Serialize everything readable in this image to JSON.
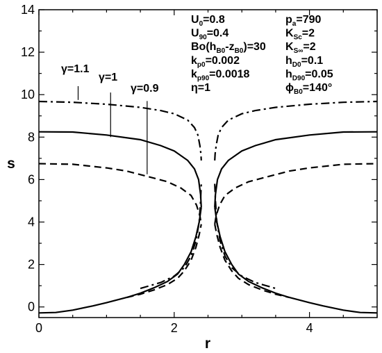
{
  "chart_data": {
    "type": "line",
    "xlabel": "r",
    "ylabel": "s",
    "xlim": [
      0,
      5
    ],
    "ylim": [
      -0.5,
      14
    ],
    "x_ticks": [
      0,
      2,
      4
    ],
    "y_ticks": [
      0,
      2,
      4,
      6,
      8,
      10,
      12,
      14
    ],
    "grid": false,
    "legend": "none",
    "series": [
      {
        "name": "γ=1.1",
        "style": "dashdot",
        "top_left": [
          [
            0,
            9.68
          ],
          [
            0.5,
            9.64
          ],
          [
            1.0,
            9.55
          ],
          [
            1.5,
            9.4
          ],
          [
            1.8,
            9.25
          ],
          [
            2.0,
            9.1
          ],
          [
            2.2,
            8.8
          ],
          [
            2.3,
            8.45
          ],
          [
            2.35,
            8.1
          ],
          [
            2.38,
            7.6
          ],
          [
            2.395,
            7.2
          ],
          [
            2.4,
            6.9
          ]
        ],
        "top_right": [
          [
            2.6,
            6.9
          ],
          [
            2.605,
            7.2
          ],
          [
            2.62,
            7.6
          ],
          [
            2.65,
            8.1
          ],
          [
            2.7,
            8.45
          ],
          [
            2.8,
            8.8
          ],
          [
            3.0,
            9.1
          ],
          [
            3.2,
            9.25
          ],
          [
            3.5,
            9.4
          ],
          [
            4.0,
            9.55
          ],
          [
            4.5,
            9.64
          ],
          [
            5.0,
            9.68
          ]
        ],
        "bottom_left": [
          [
            1.5,
            0.87
          ],
          [
            1.8,
            1.15
          ],
          [
            2.0,
            1.45
          ],
          [
            2.15,
            1.85
          ],
          [
            2.25,
            2.4
          ],
          [
            2.32,
            3.1
          ],
          [
            2.37,
            4.0
          ],
          [
            2.39,
            5.0
          ],
          [
            2.4,
            5.8
          ]
        ],
        "bottom_right": [
          [
            2.6,
            5.8
          ],
          [
            2.61,
            5.0
          ],
          [
            2.63,
            4.0
          ],
          [
            2.68,
            3.1
          ],
          [
            2.75,
            2.4
          ],
          [
            2.85,
            1.85
          ],
          [
            3.0,
            1.45
          ],
          [
            3.2,
            1.15
          ],
          [
            3.5,
            0.87
          ]
        ]
      },
      {
        "name": "γ=1",
        "style": "solid",
        "top_left": [
          [
            0,
            8.25
          ],
          [
            0.5,
            8.24
          ],
          [
            1.0,
            8.1
          ],
          [
            1.5,
            7.88
          ],
          [
            1.8,
            7.6
          ],
          [
            2.0,
            7.35
          ],
          [
            2.2,
            6.9
          ],
          [
            2.3,
            6.5
          ],
          [
            2.36,
            6.0
          ],
          [
            2.39,
            5.3
          ],
          [
            2.4,
            4.7
          ]
        ],
        "top_right": [
          [
            2.6,
            4.7
          ],
          [
            2.61,
            5.3
          ],
          [
            2.64,
            6.0
          ],
          [
            2.7,
            6.5
          ],
          [
            2.8,
            6.9
          ],
          [
            3.0,
            7.35
          ],
          [
            3.2,
            7.6
          ],
          [
            3.5,
            7.88
          ],
          [
            4.0,
            8.1
          ],
          [
            4.5,
            8.24
          ],
          [
            5.0,
            8.25
          ]
        ],
        "bottom_left": [
          [
            0,
            -0.28
          ],
          [
            0.25,
            -0.26
          ],
          [
            0.5,
            -0.15
          ],
          [
            0.8,
            0.05
          ],
          [
            1.0,
            0.2
          ],
          [
            1.3,
            0.45
          ],
          [
            1.5,
            0.65
          ],
          [
            1.7,
            0.9
          ],
          [
            1.9,
            1.2
          ],
          [
            2.05,
            1.55
          ],
          [
            2.15,
            2.0
          ],
          [
            2.25,
            2.6
          ],
          [
            2.32,
            3.3
          ],
          [
            2.37,
            4.0
          ],
          [
            2.4,
            4.7
          ]
        ],
        "bottom_right": [
          [
            2.6,
            4.7
          ],
          [
            2.63,
            4.0
          ],
          [
            2.68,
            3.3
          ],
          [
            2.75,
            2.6
          ],
          [
            2.85,
            2.0
          ],
          [
            2.95,
            1.55
          ],
          [
            3.1,
            1.2
          ],
          [
            3.3,
            0.9
          ],
          [
            3.5,
            0.65
          ],
          [
            3.7,
            0.45
          ],
          [
            4.0,
            0.2
          ],
          [
            4.2,
            0.05
          ],
          [
            4.5,
            -0.15
          ],
          [
            4.75,
            -0.26
          ],
          [
            5.0,
            -0.28
          ]
        ]
      },
      {
        "name": "γ=0.9",
        "style": "dashed",
        "top_left": [
          [
            0,
            6.75
          ],
          [
            0.5,
            6.72
          ],
          [
            1.0,
            6.55
          ],
          [
            1.3,
            6.4
          ],
          [
            1.6,
            6.15
          ],
          [
            1.9,
            5.9
          ],
          [
            2.1,
            5.6
          ],
          [
            2.25,
            5.25
          ],
          [
            2.33,
            4.8
          ],
          [
            2.38,
            4.3
          ],
          [
            2.4,
            3.9
          ]
        ],
        "top_right": [
          [
            2.6,
            3.9
          ],
          [
            2.62,
            4.3
          ],
          [
            2.67,
            4.8
          ],
          [
            2.75,
            5.25
          ],
          [
            2.9,
            5.6
          ],
          [
            3.1,
            5.9
          ],
          [
            3.4,
            6.15
          ],
          [
            3.7,
            6.4
          ],
          [
            4.0,
            6.55
          ],
          [
            4.5,
            6.72
          ],
          [
            5.0,
            6.75
          ]
        ],
        "bottom_left": [
          [
            1.3,
            0.45
          ],
          [
            1.5,
            0.6
          ],
          [
            1.7,
            0.8
          ],
          [
            1.9,
            1.05
          ],
          [
            2.05,
            1.35
          ],
          [
            2.15,
            1.7
          ],
          [
            2.25,
            2.2
          ],
          [
            2.32,
            2.8
          ],
          [
            2.37,
            3.4
          ],
          [
            2.4,
            3.9
          ]
        ],
        "bottom_right": [
          [
            2.6,
            3.9
          ],
          [
            2.63,
            3.4
          ],
          [
            2.68,
            2.8
          ],
          [
            2.75,
            2.2
          ],
          [
            2.85,
            1.7
          ],
          [
            2.95,
            1.35
          ],
          [
            3.1,
            1.05
          ],
          [
            3.3,
            0.8
          ],
          [
            3.5,
            0.6
          ],
          [
            3.7,
            0.45
          ]
        ]
      }
    ],
    "annotations": [
      {
        "label": "γ=1.1",
        "line_x": 0.58,
        "line_y": [
          9.75,
          10.4
        ]
      },
      {
        "label": "γ=1",
        "line_x": 1.06,
        "line_y": [
          8.0,
          10.1
        ]
      },
      {
        "label": "γ=0.9",
        "line_x": 1.6,
        "line_y": [
          6.25,
          9.7
        ]
      }
    ],
    "parameters_left": [
      {
        "base": "U",
        "sub": "0",
        "rest": "=0.8"
      },
      {
        "base": "U",
        "sub": "90",
        "rest": "=0.4"
      },
      {
        "base": "Bo(h",
        "sub": "B0",
        "mid": "-z",
        "sub2": "B0",
        "rest": ")=30"
      },
      {
        "base": "k",
        "sub": "p0",
        "rest": "=0.002"
      },
      {
        "base": "k",
        "sub": "p90",
        "rest": "=0.0018"
      },
      {
        "base": "η",
        "sub": "",
        "rest": "=1"
      }
    ],
    "parameters_right": [
      {
        "base": "p",
        "sub": "a",
        "rest": "=790"
      },
      {
        "base": "K",
        "sub": "Sc",
        "rest": "=2"
      },
      {
        "base": "K",
        "sub": "S∞",
        "rest": "=2"
      },
      {
        "base": "h",
        "sub": "D0",
        "rest": "=0.1"
      },
      {
        "base": "h",
        "sub": "D90",
        "rest": "=0.05"
      },
      {
        "base": "ϕ",
        "sub": "B0",
        "rest": "=140°"
      }
    ]
  }
}
